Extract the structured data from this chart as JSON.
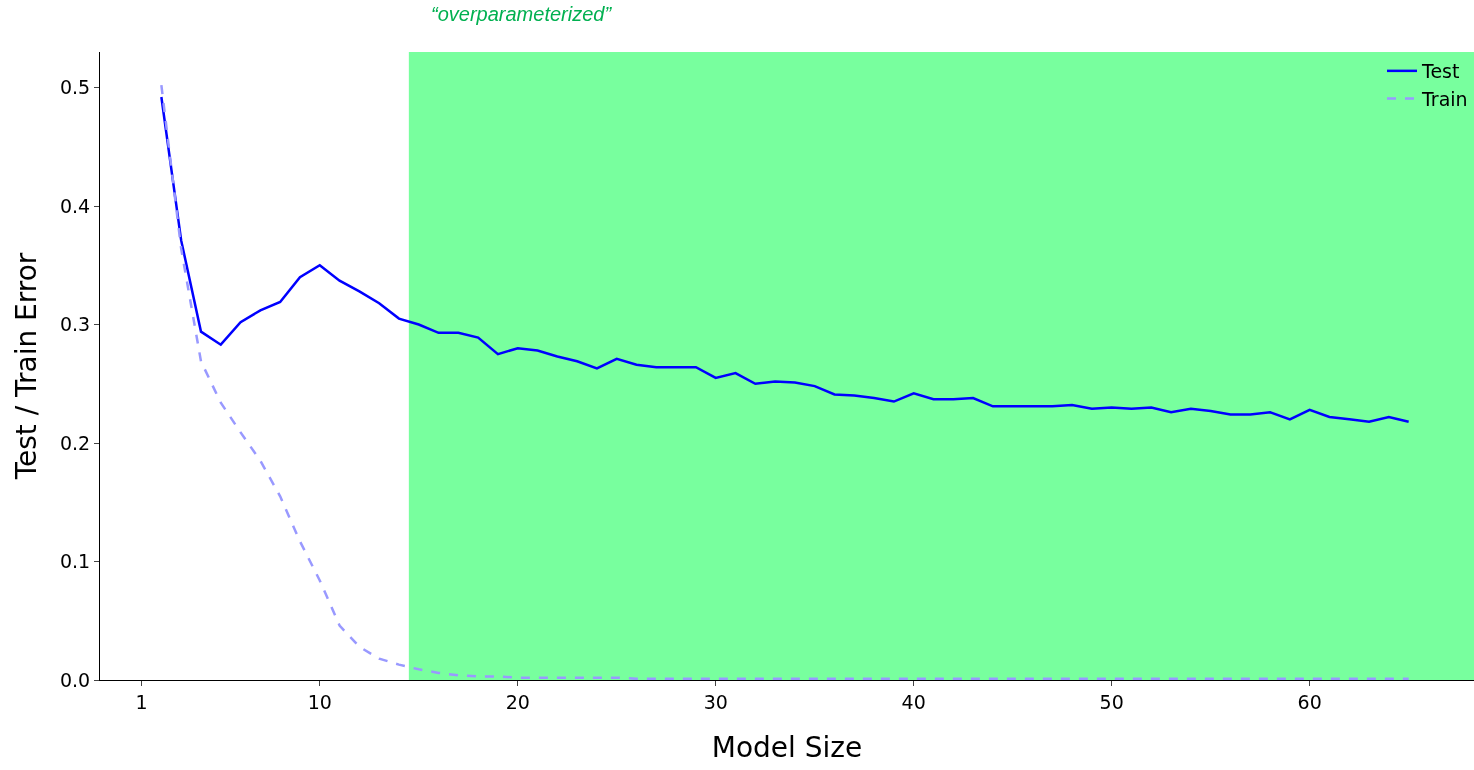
{
  "chart_data": {
    "type": "line",
    "xlabel": "Model Size",
    "ylabel": "Test / Train Error",
    "x": [
      2,
      3,
      4,
      5,
      6,
      7,
      8,
      9,
      10,
      11,
      12,
      13,
      14,
      15,
      16,
      17,
      18,
      19,
      20,
      21,
      22,
      23,
      24,
      25,
      26,
      27,
      28,
      29,
      30,
      31,
      32,
      33,
      34,
      35,
      36,
      37,
      38,
      39,
      40,
      41,
      42,
      43,
      44,
      45,
      46,
      47,
      48,
      49,
      50,
      51,
      52,
      53,
      54,
      55,
      56,
      57,
      58,
      59,
      60,
      61,
      62,
      63,
      64,
      65
    ],
    "series": [
      {
        "name": "Test",
        "color": "#0000ff",
        "line_style": "solid",
        "values": [
          0.492,
          0.371,
          0.294,
          0.283,
          0.302,
          0.312,
          0.319,
          0.34,
          0.35,
          0.337,
          0.328,
          0.318,
          0.305,
          0.3,
          0.293,
          0.293,
          0.289,
          0.275,
          0.28,
          0.278,
          0.273,
          0.269,
          0.263,
          0.271,
          0.266,
          0.264,
          0.264,
          0.264,
          0.255,
          0.259,
          0.25,
          0.252,
          0.251,
          0.248,
          0.241,
          0.24,
          0.238,
          0.235,
          0.242,
          0.237,
          0.237,
          0.238,
          0.231,
          0.231,
          0.231,
          0.231,
          0.232,
          0.229,
          0.23,
          0.229,
          0.23,
          0.226,
          0.229,
          0.227,
          0.224,
          0.224,
          0.226,
          0.22,
          0.228,
          0.222,
          0.22,
          0.218,
          0.222,
          0.218
        ]
      },
      {
        "name": "Train",
        "color": "#9999ff",
        "line_style": "dashed",
        "values": [
          0.502,
          0.364,
          0.269,
          0.234,
          0.209,
          0.185,
          0.155,
          0.117,
          0.084,
          0.046,
          0.028,
          0.018,
          0.013,
          0.009,
          0.006,
          0.004,
          0.003,
          0.003,
          0.002,
          0.002,
          0.002,
          0.002,
          0.002,
          0.002,
          0.001,
          0.001,
          0.001,
          0.001,
          0.001,
          0.001,
          0.001,
          0.001,
          0.001,
          0.001,
          0.001,
          0.001,
          0.001,
          0.001,
          0.001,
          0.001,
          0.001,
          0.001,
          0.001,
          0.001,
          0.001,
          0.001,
          0.001,
          0.001,
          0.001,
          0.001,
          0.001,
          0.001,
          0.001,
          0.001,
          0.001,
          0.001,
          0.001,
          0.001,
          0.001,
          0.001,
          0.001,
          0.001,
          0.001,
          0.001
        ]
      }
    ],
    "xlim": [
      -1.1,
      68.3
    ],
    "xticks": [
      1,
      10,
      20,
      30,
      40,
      50,
      60
    ],
    "ylim": [
      0,
      0.53
    ],
    "yticks": [
      {
        "value": 0,
        "label": "0.0"
      },
      0.1,
      0.2,
      0.3,
      0.4,
      0.5
    ],
    "bands": [
      {
        "axis": "x",
        "from": 14.5,
        "to": 68.3,
        "label": "“overparameterized”",
        "color": "#78ff9e"
      }
    ],
    "grid": false,
    "legend": "top right",
    "marker": "none"
  }
}
